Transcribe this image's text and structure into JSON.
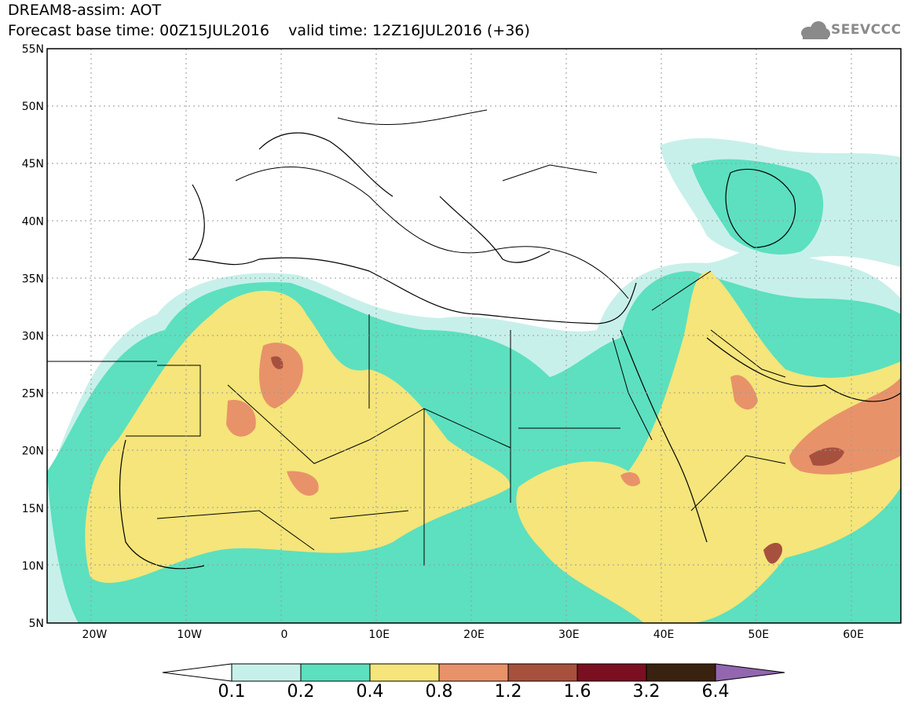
{
  "header": {
    "line1": "DREAM8-assim: AOT",
    "line2": "Forecast base time: 00Z15JUL2016    valid time: 12Z16JUL2016 (+36)",
    "logo_text": "SEEVCCC"
  },
  "map": {
    "lon_range": [
      -25,
      65
    ],
    "lat_range": [
      5,
      55
    ],
    "lat_ticks": [
      "5N",
      "10N",
      "15N",
      "20N",
      "25N",
      "30N",
      "35N",
      "40N",
      "45N",
      "50N",
      "55N"
    ],
    "lon_ticks": [
      "20W",
      "10W",
      "0",
      "10E",
      "20E",
      "30E",
      "40E",
      "50E",
      "60E"
    ],
    "field": "Aerosol Optical Thickness (AOT)"
  },
  "colorbar": {
    "levels": [
      "0.1",
      "0.2",
      "0.4",
      "0.8",
      "1.2",
      "1.6",
      "3.2",
      "6.4"
    ],
    "colors": [
      "#c8f0ea",
      "#5ce0bf",
      "#f5e57a",
      "#e8926a",
      "#a8503e",
      "#7a0f22",
      "#3a2210",
      "#9366b0"
    ],
    "under_color": "#ffffff"
  }
}
